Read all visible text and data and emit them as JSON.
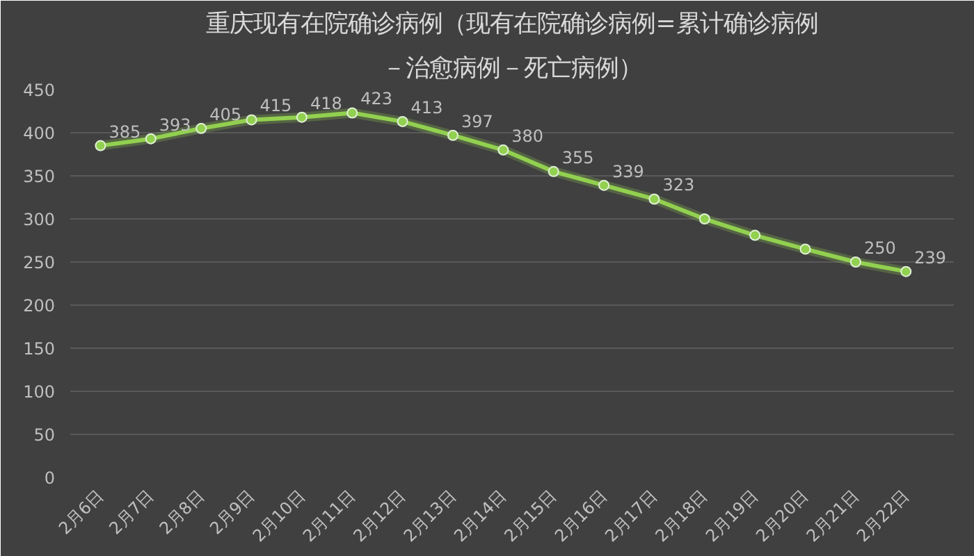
{
  "chart_data": {
    "type": "line",
    "title": "重庆现有在院确诊病例（现有在院确诊病例=累计确诊病例",
    "subtitle": "－治愈病例－死亡病例）",
    "categories": [
      "2月6日",
      "2月7日",
      "2月8日",
      "2月9日",
      "2月10日",
      "2月11日",
      "2月12日",
      "2月13日",
      "2月14日",
      "2月15日",
      "2月16日",
      "2月17日",
      "2月18日",
      "2月19日",
      "2月20日",
      "2月21日",
      "2月22日"
    ],
    "series": [
      {
        "color": "#92d050",
        "values": [
          385,
          393,
          405,
          415,
          418,
          423,
          413,
          397,
          380,
          355,
          339,
          323,
          300,
          281,
          265,
          250,
          239
        ],
        "value_labels": [
          "385",
          "393",
          "405",
          "415",
          "418",
          "423",
          "413",
          "397",
          "380",
          "355",
          "339",
          "323",
          null,
          null,
          null,
          "250",
          "239"
        ]
      }
    ],
    "ylim": [
      0,
      450
    ],
    "yticks": [
      0,
      50,
      100,
      150,
      200,
      250,
      300,
      350,
      400,
      450
    ],
    "grid": "y",
    "marker": "circle",
    "line_style": "solid"
  }
}
